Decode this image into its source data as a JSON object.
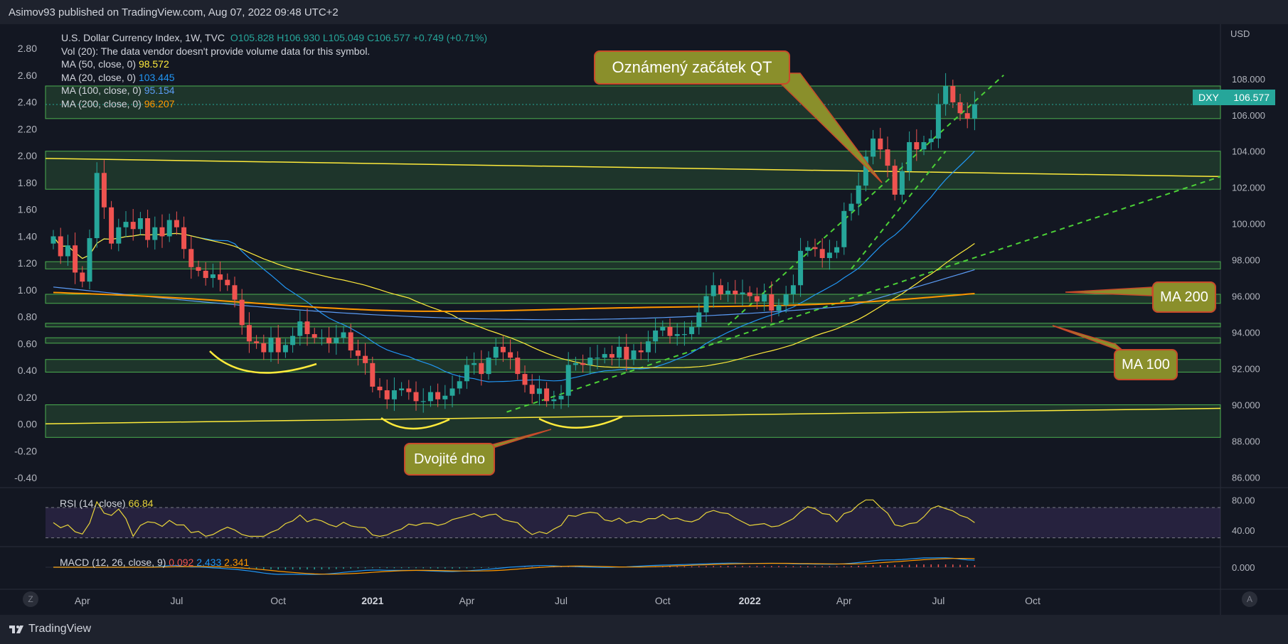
{
  "header": {
    "publish_text": "Asimov93 published on TradingView.com, Aug 07, 2022 09:48 UTC+2"
  },
  "legend": {
    "title": "U.S. Dollar Currency Index, 1W, TVC",
    "ohlc": "O105.828  H106.930  L105.049  C106.577  +0.749 (+0.71%)",
    "vol": "Vol (20): The data vendor doesn't provide volume data for this symbol.",
    "ma50_label": "MA (50, close, 0)",
    "ma50_value": "98.572",
    "ma20_label": "MA (20, close, 0)",
    "ma20_value": "103.445",
    "ma100_label": "MA (100, close, 0)",
    "ma100_value": "95.154",
    "ma200_label": "MA (200, close, 0)",
    "ma200_value": "96.207"
  },
  "rsi_legend": {
    "label": "RSI (14, close)",
    "value": "66.84"
  },
  "macd_legend": {
    "label": "MACD (12, 26, close, 9)",
    "v1": "0.092",
    "v2": "2.433",
    "v3": "2.341"
  },
  "annotations": {
    "qt": "Oznámený začátek QT",
    "double_bottom": "Dvojité dno",
    "ma200": "MA 200",
    "ma100": "MA 100"
  },
  "price_tag": {
    "symbol": "DXY",
    "value": "106.577"
  },
  "scale_buttons": {
    "left": "Z",
    "right": "A"
  },
  "footer": {
    "brand": "TradingView"
  },
  "colors": {
    "up": "#26a69a",
    "down": "#ef5350",
    "ma20": "#2196f3",
    "ma50": "#ffeb3b",
    "ma100": "#5b9cf6",
    "ma200": "#ff9800",
    "zone": "#4caf50",
    "rsi": "#e8d43a"
  },
  "chart_data": {
    "type": "candlestick",
    "title": "U.S. Dollar Currency Index, 1W, TVC",
    "right_axis": {
      "label": "USD",
      "ticks": [
        86,
        88,
        90,
        92,
        94,
        96,
        98,
        100,
        102,
        104,
        106,
        108
      ],
      "tick_labels": [
        "86.000",
        "88.000",
        "90.000",
        "92.000",
        "94.000",
        "96.000",
        "98.000",
        "100.000",
        "102.000",
        "104.000",
        "106.000",
        "108.000"
      ],
      "range": [
        85.7,
        110.7
      ]
    },
    "left_axis": {
      "ticks": [
        "2.80",
        "2.60",
        "2.40",
        "2.20",
        "2.00",
        "1.80",
        "1.60",
        "1.40",
        "1.20",
        "1.00",
        "0.80",
        "0.60",
        "0.40",
        "0.20",
        "0.00",
        "-0.20",
        "-0.40"
      ],
      "range": [
        -0.4,
        2.8
      ]
    },
    "time_axis": {
      "labels": [
        "Apr",
        "Jul",
        "Oct",
        "2021",
        "Apr",
        "Jul",
        "Oct",
        "2022",
        "Apr",
        "Jul",
        "Oct"
      ],
      "label_weeks": [
        4,
        17,
        31,
        44,
        57,
        70,
        84,
        96,
        109,
        122,
        135
      ]
    },
    "closes": [
      99.3,
      98.2,
      98.8,
      97.3,
      96.8,
      99.2,
      102.8,
      100.9,
      98.9,
      99.8,
      100.1,
      99.7,
      100.3,
      99.1,
      99.8,
      99.3,
      100.2,
      99.8,
      98.6,
      97.6,
      97.4,
      97.0,
      97.2,
      96.9,
      96.6,
      95.8,
      94.4,
      93.5,
      93.4,
      92.9,
      93.7,
      92.9,
      93.3,
      93.8,
      94.6,
      93.9,
      93.7,
      93.7,
      93.4,
      93.7,
      94.0,
      93.0,
      92.7,
      92.3,
      91.0,
      90.8,
      90.3,
      90.8,
      90.9,
      90.7,
      90.2,
      90.2,
      90.7,
      90.3,
      90.5,
      90.9,
      91.3,
      92.2,
      92.3,
      91.7,
      92.6,
      93.2,
      92.9,
      92.6,
      91.7,
      91.1,
      90.6,
      90.9,
      90.2,
      90.3,
      90.5,
      92.2,
      92.3,
      92.2,
      92.6,
      92.6,
      92.8,
      92.6,
      93.2,
      92.5,
      93.0,
      92.9,
      93.5,
      94.1,
      94.3,
      93.8,
      93.9,
      93.9,
      94.3,
      95.1,
      96.0,
      96.6,
      96.1,
      96.3,
      96.1,
      96.2,
      96.0,
      95.7,
      96.1,
      95.2,
      95.5,
      96.1,
      96.6,
      98.5,
      98.7,
      98.6,
      98.1,
      98.4,
      98.7,
      100.7,
      101.1,
      102.1,
      103.7,
      104.7,
      104.1,
      103.2,
      101.6,
      102.9,
      104.5,
      104.1,
      104.5,
      104.7,
      106.6,
      107.6,
      106.7,
      106.1,
      105.8,
      106.6
    ],
    "series": [
      {
        "name": "MA (20, close, 0)",
        "value": 103.445
      },
      {
        "name": "MA (50, close, 0)",
        "value": 98.572
      },
      {
        "name": "MA (100, close, 0)",
        "value": 95.154
      },
      {
        "name": "MA (200, close, 0)",
        "value": 96.207
      }
    ],
    "support_zones": [
      [
        105.8,
        107.6
      ],
      [
        101.9,
        104.0
      ],
      [
        97.5,
        97.9
      ],
      [
        95.6,
        96.1
      ],
      [
        94.3,
        94.5
      ],
      [
        93.4,
        93.7
      ],
      [
        91.8,
        92.5
      ],
      [
        88.2,
        90.0
      ]
    ],
    "rsi": {
      "label": "RSI (14, close)",
      "value": 66.84,
      "levels": [
        70,
        30
      ],
      "ticks": [
        "80.00",
        "40.00"
      ]
    },
    "macd": {
      "label": "MACD (12, 26, close, 9)",
      "values": [
        0.092,
        2.433,
        2.341
      ],
      "ticks": [
        "0.000"
      ]
    },
    "last_price": 106.577,
    "grid": false
  }
}
